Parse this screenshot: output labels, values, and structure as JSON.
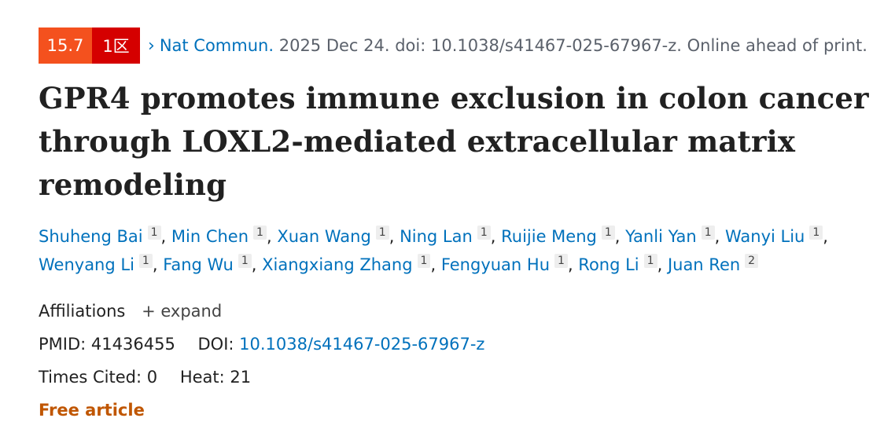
{
  "badges": {
    "impact_factor": "15.7",
    "zone": "1区",
    "colors": {
      "impact_factor": "#f4511e",
      "zone": "#d50000"
    }
  },
  "citation": {
    "journal": "Nat Commun.",
    "details": "2025 Dec 24. doi: 10.1038/s41467-025-67967-z. Online ahead of print."
  },
  "title": "GPR4 promotes immune exclusion in colon cancer through LOXL2-mediated extracellular matrix remodeling",
  "authors": [
    {
      "name": "Shuheng Bai",
      "aff": "1"
    },
    {
      "name": "Min Chen",
      "aff": "1"
    },
    {
      "name": "Xuan Wang",
      "aff": "1"
    },
    {
      "name": "Ning Lan",
      "aff": "1"
    },
    {
      "name": "Ruijie Meng",
      "aff": "1"
    },
    {
      "name": "Yanli Yan",
      "aff": "1"
    },
    {
      "name": "Wanyi Liu",
      "aff": "1"
    },
    {
      "name": "Wenyang Li",
      "aff": "1"
    },
    {
      "name": "Fang Wu",
      "aff": "1"
    },
    {
      "name": "Xiangxiang Zhang",
      "aff": "1"
    },
    {
      "name": "Fengyuan Hu",
      "aff": "1"
    },
    {
      "name": "Rong Li",
      "aff": "1"
    },
    {
      "name": "Juan Ren",
      "aff": "2"
    }
  ],
  "affiliations": {
    "label": "Affiliations",
    "expand": "expand"
  },
  "ids": {
    "pmid_label": "PMID:",
    "pmid": "41436455",
    "doi_label": "DOI:",
    "doi": "10.1038/s41467-025-67967-z"
  },
  "metrics": {
    "cited_label": "Times Cited:",
    "cited": "0",
    "heat_label": "Heat:",
    "heat": "21"
  },
  "free_article": "Free article"
}
